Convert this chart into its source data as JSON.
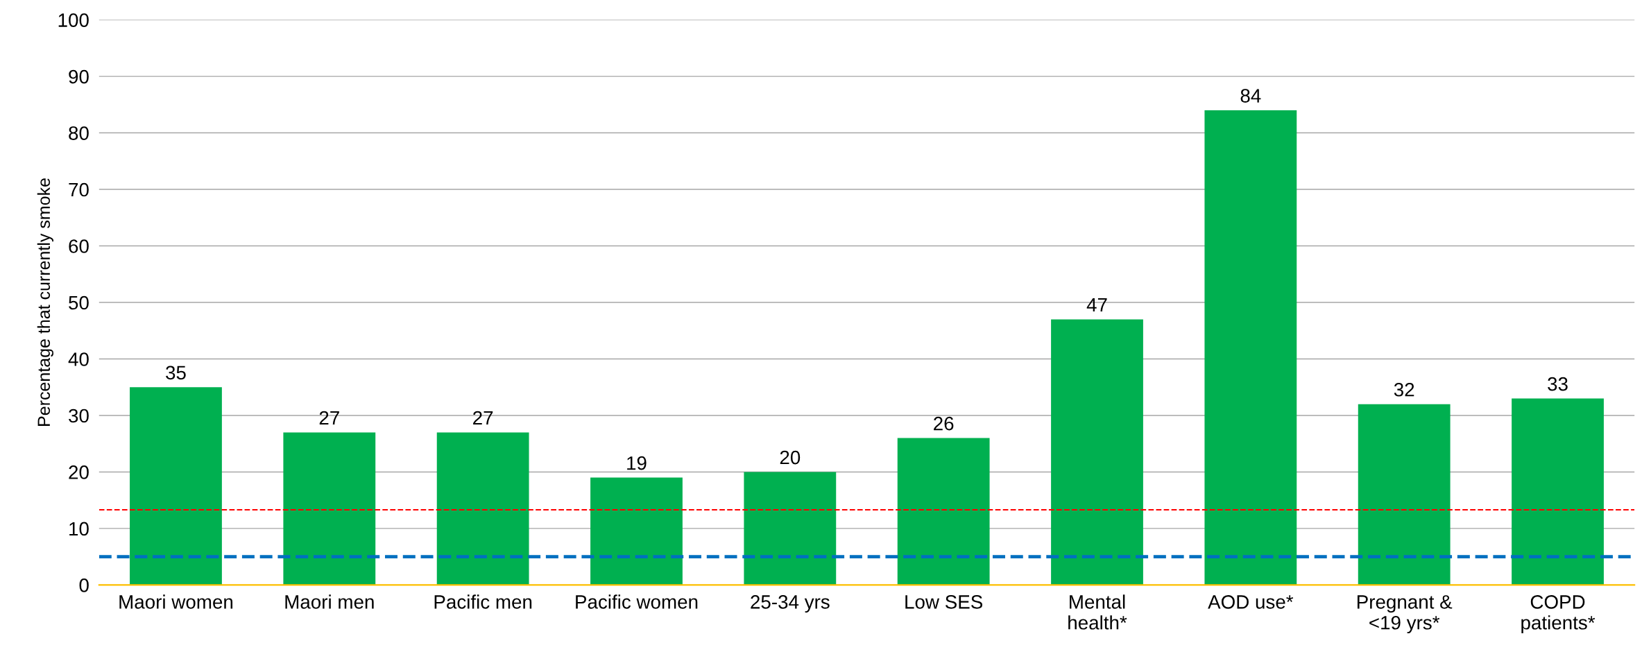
{
  "chart_data": {
    "type": "bar",
    "ylabel": "Percentage that currently smoke",
    "categories": [
      "Maori women",
      "Maori men",
      "Pacific men",
      "Pacific women",
      "25-34 yrs",
      "Low SES",
      "Mental\nhealth*",
      "AOD use*",
      "Pregnant &\n<19 yrs*",
      "COPD\npatients*"
    ],
    "values": [
      35,
      27,
      27,
      19,
      20,
      26,
      47,
      84,
      32,
      33
    ],
    "color": "#00b050",
    "data_labels": true,
    "ylim": [
      0,
      100
    ],
    "yticks": [
      0,
      10,
      20,
      30,
      40,
      50,
      60,
      70,
      80,
      90,
      100
    ],
    "grid": "y",
    "ref_lines": [
      {
        "axis": "y",
        "value": 13.3,
        "color": "#ff0000",
        "line_style": "dashed"
      },
      {
        "axis": "y",
        "value": 5,
        "color": "#0070c0",
        "line_style": "dashed"
      }
    ]
  }
}
